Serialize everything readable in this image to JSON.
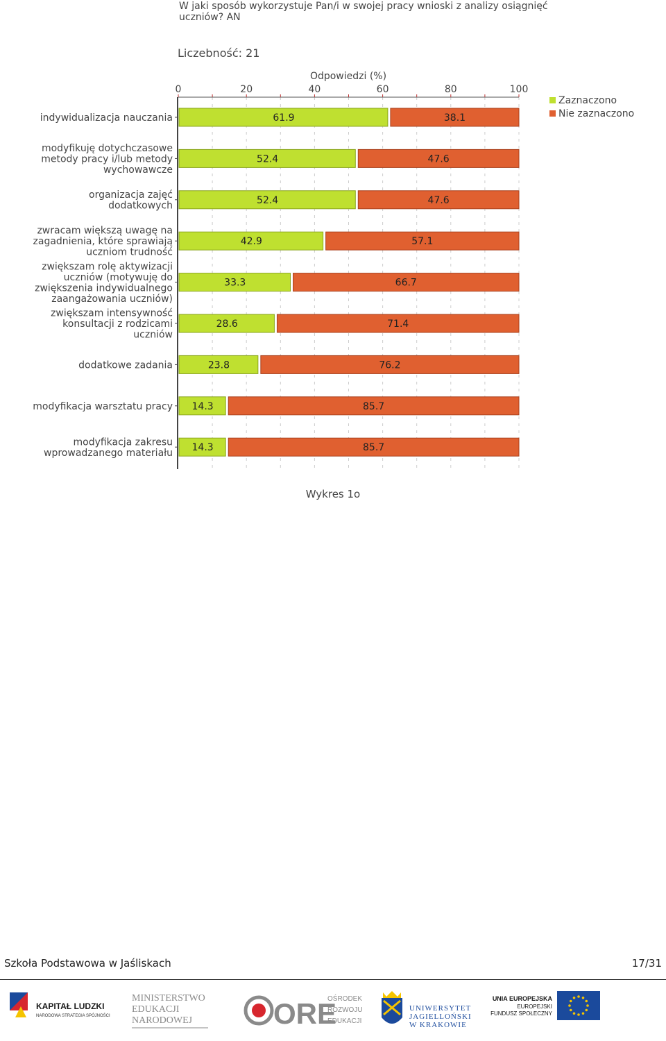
{
  "question": {
    "line1": "W jaki sposób wykorzystuje Pan/i w swojej pracy wnioski z analizy osiągnięć",
    "line2": "uczniów? AN"
  },
  "count_label": "Liczebność: 21",
  "caption": "Wykres 1o",
  "footer": {
    "school": "Szkoła Podstawowa w Jaśliskach",
    "page": "17/31"
  },
  "logos": {
    "kapital": {
      "line1": "KAPITAŁ LUDZKI",
      "line2": "NARODOWA STRATEGIA SPÓJNOŚCI"
    },
    "men": {
      "line1": "MINISTERSTWO",
      "line2": "EDUKACJI",
      "line3": "NARODOWEJ"
    },
    "ore": {
      "mark": "ORE",
      "line1": "OŚRODEK",
      "line2": "ROZWOJU",
      "line3": "EDUKACJI"
    },
    "uj": {
      "line1": "UNIWERSYTET",
      "line2": "JAGIELLOŃSKI",
      "line3": "W KRAKOWIE"
    },
    "ue": {
      "line1": "UNIA EUROPEJSKA",
      "line2": "EUROPEJSKI",
      "line3": "FUNDUSZ SPOŁECZNY"
    }
  },
  "colors": {
    "selected": "#bfe030",
    "selected_border": "#8aa51c",
    "not_selected": "#e06030",
    "not_selected_border": "#a8401c"
  },
  "chart_data": {
    "type": "bar",
    "orientation": "horizontal",
    "stacked": true,
    "xlabel": "Odpowiedzi (%)",
    "xlim": [
      0,
      100
    ],
    "xticks": [
      0,
      20,
      40,
      60,
      80,
      100
    ],
    "grid": true,
    "legend_position": "top-right",
    "categories": [
      [
        "indywidualizacja nauczania"
      ],
      [
        "modyfikuję dotychczasowe",
        "metody pracy i/lub metody",
        "wychowawcze"
      ],
      [
        "organizacja zajęć",
        "dodatkowych"
      ],
      [
        "zwracam większą uwagę na",
        "zagadnienia, które sprawiają",
        "uczniom trudność"
      ],
      [
        "zwiększam rolę aktywizacji",
        "uczniów (motywuję do",
        "zwiększenia indywidualnego",
        "zaangażowania uczniów)"
      ],
      [
        "zwiększam intensywność",
        "konsultacji z rodzicami",
        "uczniów"
      ],
      [
        "dodatkowe zadania"
      ],
      [
        "modyfikacja warsztatu pracy"
      ],
      [
        "modyfikacja zakresu",
        "wprowadzanego materiału"
      ]
    ],
    "series": [
      {
        "name": "Zaznaczono",
        "values": [
          61.9,
          52.4,
          52.4,
          42.9,
          33.3,
          28.6,
          23.8,
          14.3,
          14.3
        ]
      },
      {
        "name": "Nie zaznaczono",
        "values": [
          38.1,
          47.6,
          47.6,
          57.1,
          66.7,
          71.4,
          76.2,
          85.7,
          85.7
        ]
      }
    ]
  }
}
